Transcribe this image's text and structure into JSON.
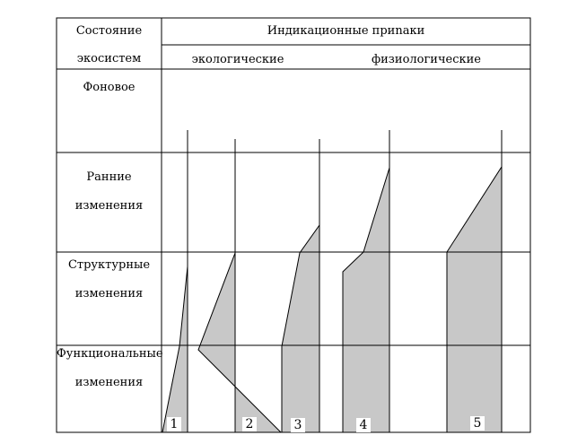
{
  "header": {
    "state_line1": "Состояние",
    "state_line2": "экосистем",
    "indicators": "Индикационные приnаки",
    "ecological": "экологические",
    "physiological": "физиологические"
  },
  "rows": {
    "background": "Фоновое",
    "early_line1": "Ранние",
    "early_line2": "изменения",
    "structural_line1": "Структурные",
    "structural_line2": "изменения",
    "functional_line1": "Функциональные",
    "functional_line2": "изменения"
  },
  "indicator_numbers": [
    "1",
    "2",
    "3",
    "4",
    "5"
  ],
  "colors": {
    "fill": "#c8c8c8",
    "line": "#000000"
  }
}
